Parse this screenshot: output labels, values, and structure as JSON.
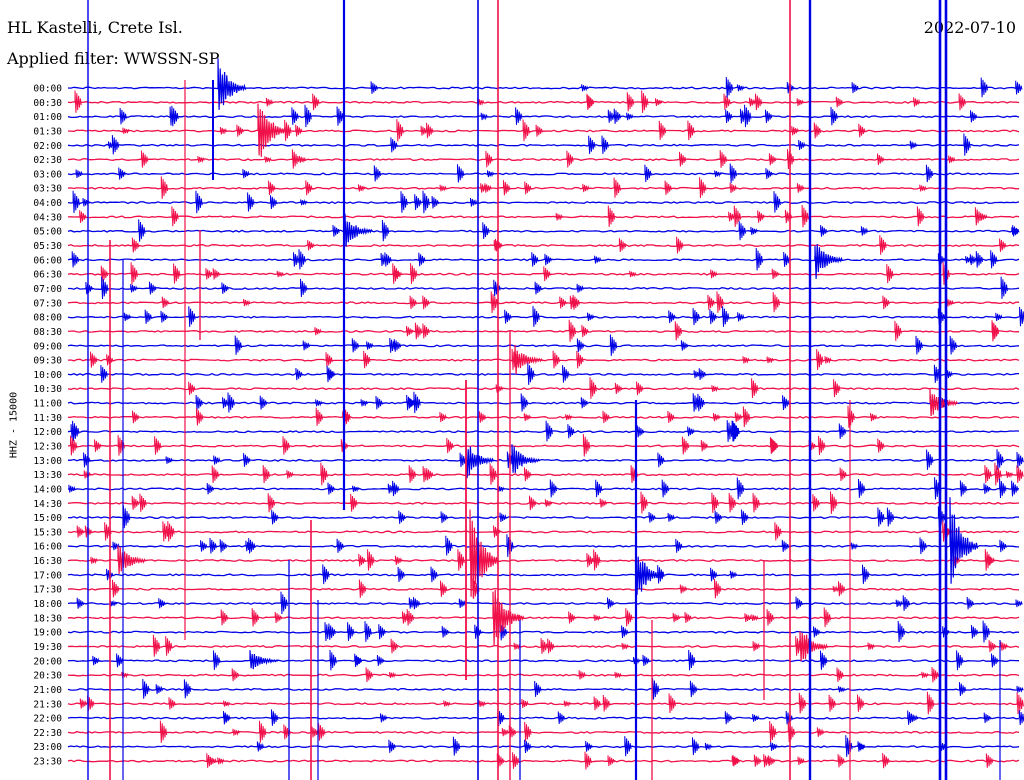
{
  "header": {
    "station": "HL Kastelli, Crete Isl.",
    "filter": "Applied filter: WWSSN-SP",
    "date": "2022-07-10"
  },
  "axis": {
    "channel_label": "HHZ - 15000"
  },
  "colors": {
    "trace_a": "#0000e6",
    "trace_b": "#f0104a",
    "background": "#ffffff",
    "text": "#000000"
  },
  "helicorder": {
    "rows": [
      "00:00",
      "00:30",
      "01:00",
      "01:30",
      "02:00",
      "02:30",
      "03:00",
      "03:30",
      "04:00",
      "04:30",
      "05:00",
      "05:30",
      "06:00",
      "06:30",
      "07:00",
      "07:30",
      "08:00",
      "08:30",
      "09:00",
      "09:30",
      "10:00",
      "10:30",
      "11:00",
      "11:30",
      "12:00",
      "12:30",
      "13:00",
      "13:30",
      "14:00",
      "14:30",
      "15:00",
      "15:30",
      "16:00",
      "16:30",
      "17:00",
      "17:30",
      "18:00",
      "18:30",
      "19:00",
      "19:30",
      "20:00",
      "20:30",
      "21:00",
      "21:30",
      "22:00",
      "22:30",
      "23:00",
      "23:30"
    ]
  }
}
